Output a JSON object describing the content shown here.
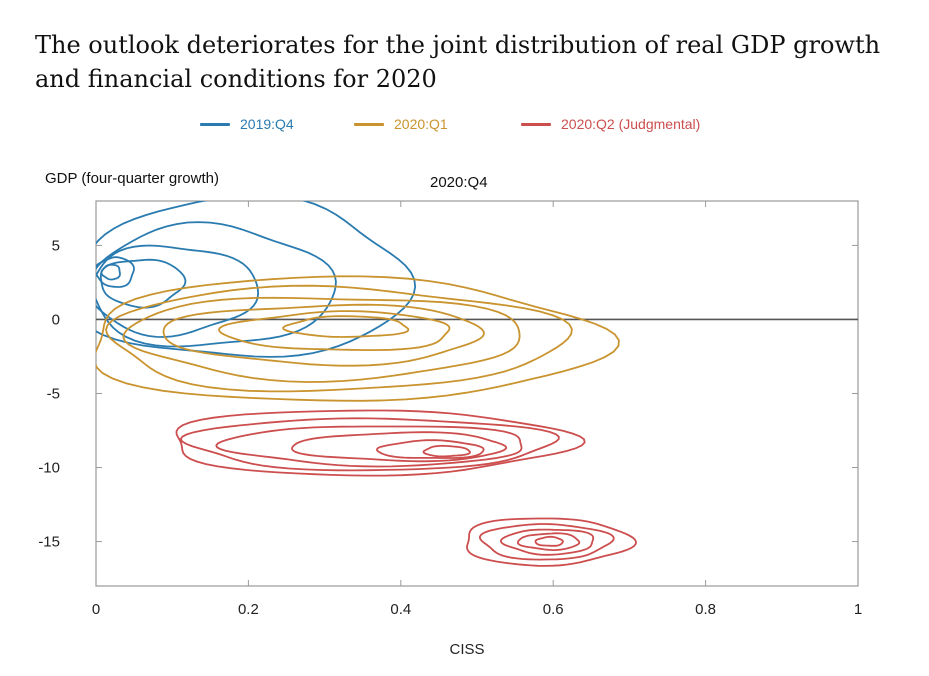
{
  "chart_data": {
    "type": "contour",
    "title": "The outlook deteriorates for the joint distribution of real GDP growth and financial conditions for 2020",
    "panel_title": "2020:Q4",
    "xlabel": "CISS",
    "ylabel": "GDP (four-quarter growth)",
    "xlim": [
      0,
      1
    ],
    "ylim": [
      -18,
      8
    ],
    "xticks": [
      0,
      0.2,
      0.4,
      0.6,
      0.8,
      1
    ],
    "xtick_labels": [
      "0",
      "0.2",
      "0.4",
      "0.6",
      "0.8",
      "1"
    ],
    "yticks": [
      5,
      0,
      -5,
      -10,
      -15
    ],
    "ytick_labels": [
      "5",
      "0",
      "-5",
      "-10",
      "-15"
    ],
    "reference_line_y": 0,
    "legend_position": "top-center",
    "series": [
      {
        "name": "2019:Q4",
        "color": "#2a7bb0",
        "peak": {
          "x": 0.02,
          "y": 3.2
        },
        "levels": [
          {
            "cx": 0.19,
            "cy": 2.7,
            "rx": 0.22,
            "ry": 5.4
          },
          {
            "cx": 0.15,
            "cy": 2.2,
            "rx": 0.16,
            "ry": 4.1
          },
          {
            "cx": 0.1,
            "cy": 2.0,
            "rx": 0.11,
            "ry": 3.0
          },
          {
            "cx": 0.06,
            "cy": 2.5,
            "rx": 0.055,
            "ry": 1.6
          },
          {
            "cx": 0.025,
            "cy": 3.2,
            "rx": 0.025,
            "ry": 1.0
          },
          {
            "cx": 0.02,
            "cy": 3.2,
            "rx": 0.012,
            "ry": 0.5
          }
        ]
      },
      {
        "name": "2020:Q1",
        "color": "#c9942f",
        "peak": {
          "x": 0.33,
          "y": -0.5
        },
        "levels": [
          {
            "cx": 0.32,
            "cy": -1.4,
            "rx": 0.34,
            "ry": 4.2
          },
          {
            "cx": 0.31,
            "cy": -1.3,
            "rx": 0.3,
            "ry": 3.5
          },
          {
            "cx": 0.3,
            "cy": -1.2,
            "rx": 0.26,
            "ry": 2.8
          },
          {
            "cx": 0.3,
            "cy": -1.0,
            "rx": 0.21,
            "ry": 2.0
          },
          {
            "cx": 0.32,
            "cy": -0.8,
            "rx": 0.15,
            "ry": 1.3
          },
          {
            "cx": 0.33,
            "cy": -0.5,
            "rx": 0.08,
            "ry": 0.7
          }
        ]
      },
      {
        "name": "2020:Q2 (Judgmental)",
        "color": "#cc4e4e",
        "peak": {
          "x": 0.46,
          "y": -8.9
        },
        "levels": [
          {
            "cx": 0.355,
            "cy": -8.3,
            "rx": 0.265,
            "ry": 2.2
          },
          {
            "cx": 0.36,
            "cy": -8.4,
            "rx": 0.24,
            "ry": 1.75
          },
          {
            "cx": 0.37,
            "cy": -8.5,
            "rx": 0.2,
            "ry": 1.35
          },
          {
            "cx": 0.4,
            "cy": -8.6,
            "rx": 0.14,
            "ry": 0.95
          },
          {
            "cx": 0.44,
            "cy": -8.8,
            "rx": 0.07,
            "ry": 0.6
          },
          {
            "cx": 0.46,
            "cy": -8.9,
            "rx": 0.03,
            "ry": 0.35
          },
          {
            "cx": 0.59,
            "cy": -15.0,
            "rx": 0.11,
            "ry": 1.6
          },
          {
            "cx": 0.59,
            "cy": -15.0,
            "rx": 0.085,
            "ry": 1.2
          },
          {
            "cx": 0.595,
            "cy": -15.0,
            "rx": 0.06,
            "ry": 0.85
          },
          {
            "cx": 0.595,
            "cy": -15.0,
            "rx": 0.04,
            "ry": 0.55
          },
          {
            "cx": 0.595,
            "cy": -15.0,
            "rx": 0.018,
            "ry": 0.3
          }
        ]
      }
    ]
  }
}
